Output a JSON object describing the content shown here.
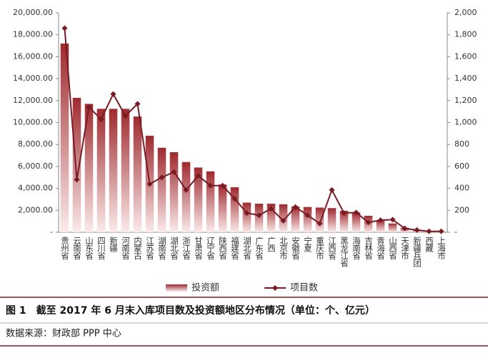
{
  "chart_data": {
    "type": "bar",
    "caption": "图 1　截至 2017 年 6 月末入库项目数及投资额地区分布情况（单位：个、亿元）",
    "source": "数据来源：财政部 PPP 中心",
    "categories": [
      "贵州省",
      "云南省",
      "山东省",
      "四川省",
      "新疆",
      "河南省",
      "内蒙古",
      "江苏省",
      "湖南省",
      "湖北省",
      "浙江省",
      "甘肃省",
      "辽宁省",
      "陕西省",
      "福建省",
      "湖北省",
      "广东省",
      "广西",
      "北京市",
      "安徽省",
      "宁夏",
      "重庆市",
      "江西省",
      "黑龙江省",
      "海南省",
      "吉林省",
      "青海省",
      "山西省",
      "天津市",
      "新疆兵团",
      "西藏",
      "上海市"
    ],
    "series": [
      {
        "name": "投资额",
        "type": "bar",
        "color": "#9e2a2f",
        "values": [
          17200,
          12250,
          11700,
          11250,
          11250,
          11250,
          10550,
          8800,
          7700,
          7300,
          6400,
          5900,
          5550,
          4350,
          4100,
          2700,
          2600,
          2600,
          2550,
          2350,
          2300,
          2250,
          2200,
          1950,
          1800,
          1500,
          1100,
          800,
          400,
          200,
          130,
          60
        ]
      },
      {
        "name": "项目数",
        "type": "line",
        "axis": "y2",
        "color": "#7a1a22",
        "values": [
          1860,
          480,
          1140,
          1030,
          1260,
          1060,
          1170,
          440,
          500,
          550,
          385,
          515,
          425,
          425,
          305,
          175,
          155,
          215,
          105,
          230,
          155,
          80,
          385,
          175,
          180,
          90,
          110,
          115,
          35,
          20,
          8,
          8
        ]
      }
    ],
    "ylim": [
      0,
      20000
    ],
    "yticks": [
      {
        "value": 0,
        "label": "-"
      },
      {
        "value": 2000,
        "label": "2,000.00"
      },
      {
        "value": 4000,
        "label": "4,000.00"
      },
      {
        "value": 6000,
        "label": "6,000.00"
      },
      {
        "value": 8000,
        "label": "8,000.00"
      },
      {
        "value": 10000,
        "label": "10,000.00"
      },
      {
        "value": 12000,
        "label": "12,000.00"
      },
      {
        "value": 14000,
        "label": "14,000.00"
      },
      {
        "value": 16000,
        "label": "16,000.00"
      },
      {
        "value": 18000,
        "label": "18,000.00"
      },
      {
        "value": 20000,
        "label": "20,000.00"
      }
    ],
    "y2lim": [
      0,
      2000
    ],
    "y2ticks": [
      {
        "value": 0,
        "label": "-"
      },
      200,
      400,
      600,
      800,
      {
        "value": 1000,
        "label": "1,000"
      },
      {
        "value": 1200,
        "label": "1,200"
      },
      {
        "value": 1400,
        "label": "1,400"
      },
      {
        "value": 1600,
        "label": "1,600"
      },
      {
        "value": 1800,
        "label": "1,800"
      },
      {
        "value": 2000,
        "label": "2,000"
      }
    ],
    "legend": "bottom"
  }
}
